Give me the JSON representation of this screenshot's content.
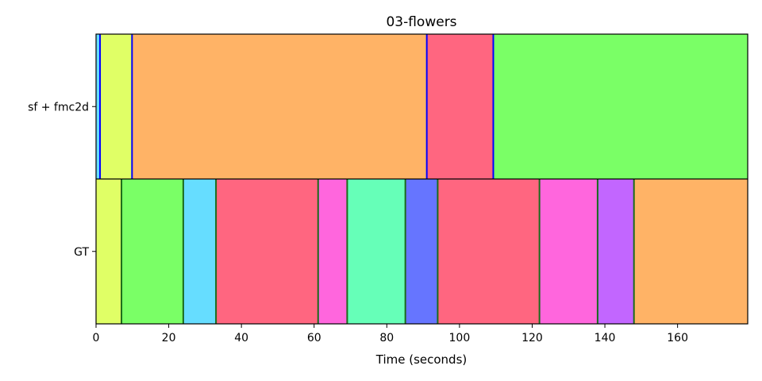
{
  "chart_data": {
    "type": "segments",
    "title": "03-flowers",
    "xlabel": "Time (seconds)",
    "ylabel": "",
    "xlim": [
      0,
      179.3
    ],
    "xticks": [
      0,
      20,
      40,
      60,
      80,
      100,
      120,
      140,
      160
    ],
    "rows": [
      {
        "label": "sf + fmc2d",
        "boundary_color": "#0000ff",
        "segments": [
          {
            "start": 0,
            "end": 1.1,
            "color": "#66ddff"
          },
          {
            "start": 1.1,
            "end": 9.9,
            "color": "#e0ff66"
          },
          {
            "start": 9.9,
            "end": 91.0,
            "color": "#ffb366"
          },
          {
            "start": 91.0,
            "end": 109.3,
            "color": "#ff6680"
          },
          {
            "start": 109.3,
            "end": 179.3,
            "color": "#7aff66"
          }
        ]
      },
      {
        "label": "GT",
        "boundary_color": "#1a6b1a",
        "segments": [
          {
            "start": 0,
            "end": 7.0,
            "color": "#e0ff66"
          },
          {
            "start": 7.0,
            "end": 24.0,
            "color": "#7aff66"
          },
          {
            "start": 24.0,
            "end": 33.0,
            "color": "#66ddff"
          },
          {
            "start": 33.0,
            "end": 61.1,
            "color": "#ff6680"
          },
          {
            "start": 61.1,
            "end": 69.1,
            "color": "#ff66dd"
          },
          {
            "start": 69.1,
            "end": 85.1,
            "color": "#66ffb8"
          },
          {
            "start": 85.1,
            "end": 94.0,
            "color": "#6675ff"
          },
          {
            "start": 94.0,
            "end": 122.0,
            "color": "#ff6680"
          },
          {
            "start": 122.0,
            "end": 138.0,
            "color": "#ff66dd"
          },
          {
            "start": 138.0,
            "end": 148.0,
            "color": "#c266ff"
          },
          {
            "start": 148.0,
            "end": 179.3,
            "color": "#ffb366"
          }
        ]
      }
    ]
  }
}
